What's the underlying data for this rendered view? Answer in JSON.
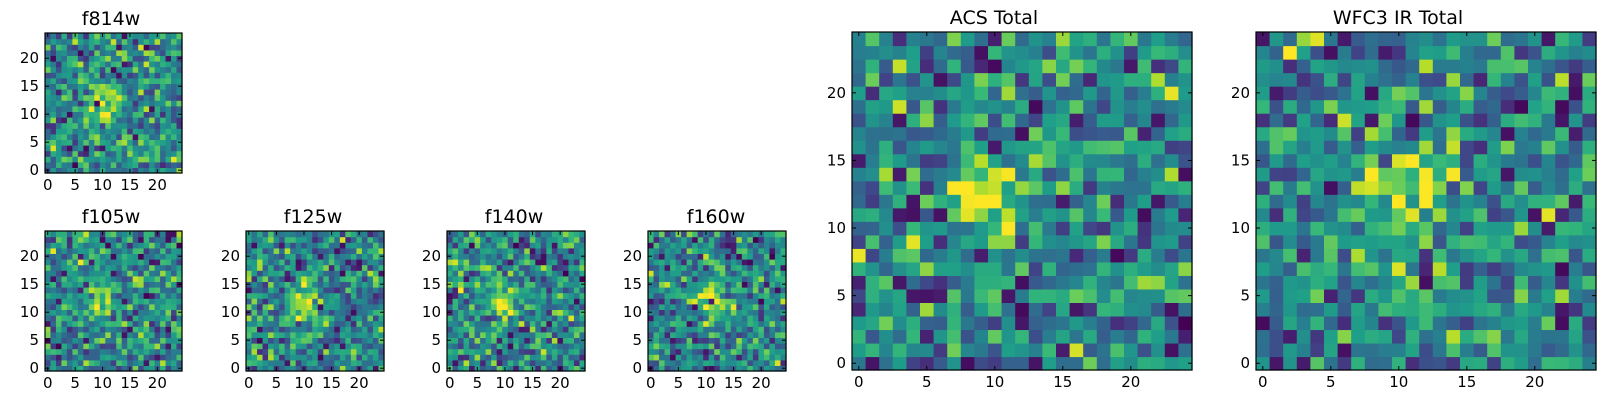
{
  "figure": {
    "description_type": "grid of pixel-intensity images (viridis colormap)"
  },
  "chart_data": [
    {
      "type": "heatmap",
      "title": "f814w",
      "xticks": [
        "0",
        "5",
        "10",
        "15",
        "20"
      ],
      "yticks": [
        "0",
        "5",
        "10",
        "15",
        "20"
      ],
      "xlim": [
        -0.5,
        24.5
      ],
      "ylim": [
        -0.5,
        24.5
      ],
      "grid_size": [
        25,
        25
      ],
      "colormap": "viridis",
      "source_center": [
        10,
        12
      ],
      "seed": 11
    },
    {
      "type": "heatmap",
      "title": "f105w",
      "xticks": [
        "0",
        "5",
        "10",
        "15",
        "20"
      ],
      "yticks": [
        "0",
        "5",
        "10",
        "15",
        "20"
      ],
      "xlim": [
        -0.5,
        24.5
      ],
      "ylim": [
        -0.5,
        24.5
      ],
      "grid_size": [
        25,
        25
      ],
      "colormap": "viridis",
      "source_center": [
        10,
        12
      ],
      "seed": 23
    },
    {
      "type": "heatmap",
      "title": "f125w",
      "xticks": [
        "0",
        "5",
        "10",
        "15",
        "20"
      ],
      "yticks": [
        "0",
        "5",
        "10",
        "15",
        "20"
      ],
      "xlim": [
        -0.5,
        24.5
      ],
      "ylim": [
        -0.5,
        24.5
      ],
      "grid_size": [
        25,
        25
      ],
      "colormap": "viridis",
      "source_center": [
        10,
        12
      ],
      "seed": 37
    },
    {
      "type": "heatmap",
      "title": "f140w",
      "xticks": [
        "0",
        "5",
        "10",
        "15",
        "20"
      ],
      "yticks": [
        "0",
        "5",
        "10",
        "15",
        "20"
      ],
      "xlim": [
        -0.5,
        24.5
      ],
      "ylim": [
        -0.5,
        24.5
      ],
      "grid_size": [
        25,
        25
      ],
      "colormap": "viridis",
      "source_center": [
        9,
        12
      ],
      "seed": 41
    },
    {
      "type": "heatmap",
      "title": "f160w",
      "xticks": [
        "0",
        "5",
        "10",
        "15",
        "20"
      ],
      "yticks": [
        "0",
        "5",
        "10",
        "15",
        "20"
      ],
      "xlim": [
        -0.5,
        24.5
      ],
      "ylim": [
        -0.5,
        24.5
      ],
      "grid_size": [
        25,
        25
      ],
      "colormap": "viridis",
      "source_center": [
        11,
        12
      ],
      "seed": 53
    },
    {
      "type": "heatmap",
      "title": "ACS Total",
      "xticks": [
        "0",
        "5",
        "10",
        "15",
        "20"
      ],
      "yticks": [
        "0",
        "5",
        "10",
        "15",
        "20"
      ],
      "xlim": [
        -0.5,
        24.5
      ],
      "ylim": [
        -0.5,
        24.5
      ],
      "grid_size": [
        25,
        25
      ],
      "colormap": "viridis",
      "source_center": [
        10,
        12
      ],
      "seed": 67
    },
    {
      "type": "heatmap",
      "title": "WFC3 IR Total",
      "xticks": [
        "0",
        "5",
        "10",
        "15",
        "20"
      ],
      "yticks": [
        "0",
        "5",
        "10",
        "15",
        "20"
      ],
      "xlim": [
        -0.5,
        24.5
      ],
      "ylim": [
        -0.5,
        24.5
      ],
      "grid_size": [
        25,
        25
      ],
      "colormap": "viridis",
      "source_center": [
        11,
        13
      ],
      "seed": 79
    }
  ]
}
